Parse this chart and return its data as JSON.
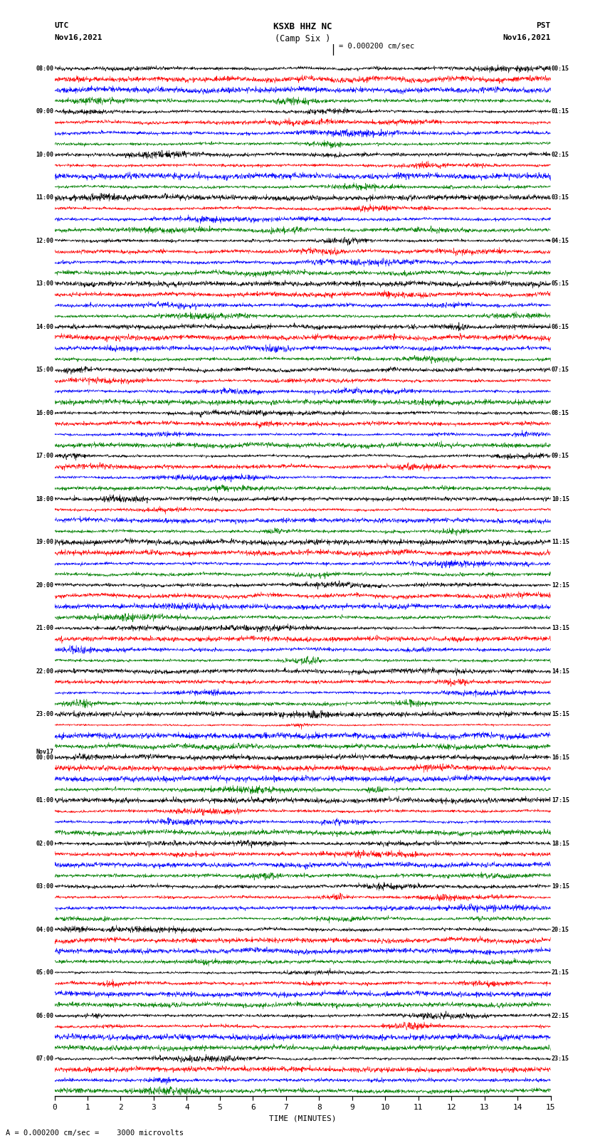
{
  "title_line1": "KSXB HHZ NC",
  "title_line2": "(Camp Six )",
  "scale_label": "= 0.000200 cm/sec",
  "bottom_label": "A = 0.000200 cm/sec =    3000 microvolts",
  "left_header": "UTC",
  "left_date": "Nov16,2021",
  "right_header": "PST",
  "right_date": "Nov16,2021",
  "xlabel": "TIME (MINUTES)",
  "time_min": 0,
  "time_max": 15,
  "xticks": [
    0,
    1,
    2,
    3,
    4,
    5,
    6,
    7,
    8,
    9,
    10,
    11,
    12,
    13,
    14,
    15
  ],
  "n_groups": 24,
  "n_traces_per_group": 4,
  "row_colors": [
    "black",
    "red",
    "blue",
    "green"
  ],
  "hour_left": [
    "08:00",
    "09:00",
    "10:00",
    "11:00",
    "12:00",
    "13:00",
    "14:00",
    "15:00",
    "16:00",
    "17:00",
    "18:00",
    "19:00",
    "20:00",
    "21:00",
    "22:00",
    "23:00",
    "00:00",
    "01:00",
    "02:00",
    "03:00",
    "04:00",
    "05:00",
    "06:00",
    "07:00"
  ],
  "hour_right": [
    "00:15",
    "01:15",
    "02:15",
    "03:15",
    "04:15",
    "05:15",
    "06:15",
    "07:15",
    "08:15",
    "09:15",
    "10:15",
    "11:15",
    "12:15",
    "13:15",
    "14:15",
    "15:15",
    "16:15",
    "17:15",
    "18:15",
    "19:15",
    "20:15",
    "21:15",
    "22:15",
    "23:15"
  ],
  "nov17_group_index": 16,
  "background_color": "white",
  "seed": 12345,
  "fig_width": 8.5,
  "fig_height": 16.13,
  "dpi": 100
}
